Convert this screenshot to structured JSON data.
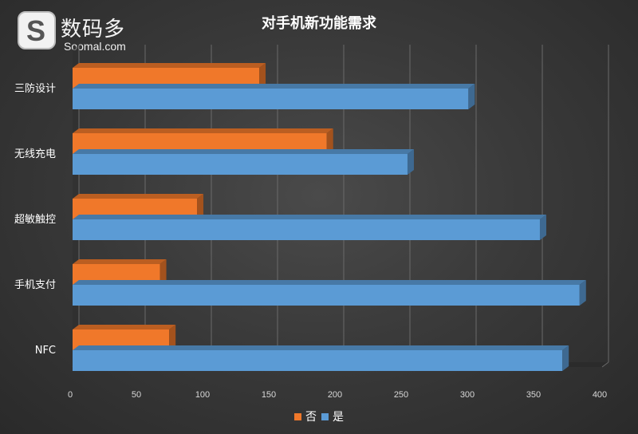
{
  "watermark": {
    "name_cn": "数码多",
    "name_en": "Soomal.com"
  },
  "chart_data": {
    "type": "bar",
    "orientation": "horizontal",
    "title": "对手机新功能需求",
    "categories": [
      "三防设计",
      "无线充电",
      "超敏触控",
      "手机支付",
      "NFC"
    ],
    "series": [
      {
        "name": "否",
        "color": "#f0782a",
        "values": [
          141,
          192,
          94,
          66,
          73
        ]
      },
      {
        "name": "是",
        "color": "#5b9bd5",
        "values": [
          299,
          253,
          353,
          383,
          370
        ]
      }
    ],
    "x_ticks": [
      0,
      50,
      100,
      150,
      200,
      250,
      300,
      350,
      400
    ],
    "xlim": [
      0,
      400
    ],
    "grid": true,
    "legend": "bottom",
    "style": "3d"
  }
}
